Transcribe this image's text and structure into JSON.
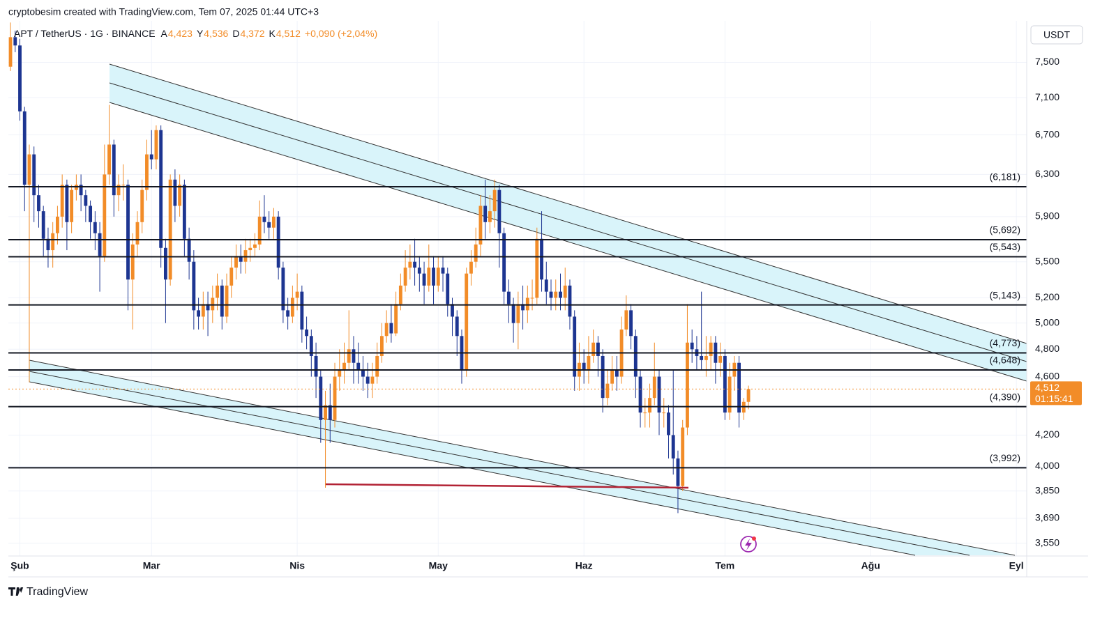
{
  "header": {
    "author_line": "cryptobesim created with TradingView.com, Tem 07, 2025 01:44 UTC+3"
  },
  "footer": {
    "brand": "TradingView"
  },
  "chart_data": {
    "type": "candlestick",
    "symbol": "APT / TetherUS · 1G · BINANCE",
    "ohlc_legend": [
      {
        "key": "A",
        "label": "4,423"
      },
      {
        "key": "Y",
        "label": "4,536"
      },
      {
        "key": "D",
        "label": "4,372"
      },
      {
        "key": "K",
        "label": "4,512"
      }
    ],
    "change": "+0,090 (+2,04%)",
    "currency": "USDT",
    "last_price": {
      "value": 4.512,
      "label": "4,512"
    },
    "countdown": "01:15:41",
    "up_color": "#f28c28",
    "down_color": "#1d3591",
    "log_scale": true,
    "grid": true,
    "xlim": [
      -0.45,
      216.2
    ],
    "xticks": [
      {
        "value": 2,
        "label": "Şub"
      },
      {
        "value": 30,
        "label": "Mar"
      },
      {
        "value": 61,
        "label": "Nis"
      },
      {
        "value": 91,
        "label": "May"
      },
      {
        "value": 122,
        "label": "Haz"
      },
      {
        "value": 152,
        "label": "Tem"
      },
      {
        "value": 183,
        "label": "Ağu"
      },
      {
        "value": 214,
        "label": "Eyl"
      }
    ],
    "ylim": [
      3.48,
      8.0
    ],
    "yticks": [
      {
        "value": 3.55,
        "label": "3,550"
      },
      {
        "value": 3.69,
        "label": "3,690"
      },
      {
        "value": 3.85,
        "label": "3,850"
      },
      {
        "value": 4.0,
        "label": "4,000"
      },
      {
        "value": 4.2,
        "label": "4,200"
      },
      {
        "value": 4.6,
        "label": "4,600"
      },
      {
        "value": 4.8,
        "label": "4,800"
      },
      {
        "value": 5.0,
        "label": "5,000"
      },
      {
        "value": 5.2,
        "label": "5,200"
      },
      {
        "value": 5.5,
        "label": "5,500"
      },
      {
        "value": 5.9,
        "label": "5,900"
      },
      {
        "value": 6.3,
        "label": "6,300"
      },
      {
        "value": 6.7,
        "label": "6,700"
      },
      {
        "value": 7.1,
        "label": "7,100"
      },
      {
        "value": 7.5,
        "label": "7,500"
      }
    ],
    "levels": [
      {
        "value": 6.181,
        "label": "(6,181)"
      },
      {
        "value": 5.692,
        "label": "(5,692)"
      },
      {
        "value": 5.543,
        "label": "(5,543)"
      },
      {
        "value": 5.143,
        "label": "(5,143)"
      },
      {
        "value": 4.773,
        "label": "(4,773)"
      },
      {
        "value": 4.648,
        "label": "(4,648)"
      },
      {
        "value": 4.39,
        "label": "(4,390)"
      },
      {
        "value": 3.992,
        "label": "(3,992)"
      }
    ],
    "open": [
      7.45,
      7.8,
      7.7,
      6.95,
      6.2,
      6.5,
      6.1,
      5.95,
      5.7,
      5.6,
      5.75,
      5.9,
      6.2,
      5.85,
      6.15,
      6.2,
      6.1,
      6.0,
      5.85,
      5.75,
      5.55,
      6.3,
      6.6,
      6.1,
      6.2,
      6.2,
      5.35,
      5.65,
      5.85,
      6.15,
      6.5,
      6.45,
      6.75,
      5.62,
      5.35,
      6.25,
      6.0,
      6.2,
      5.7,
      5.5,
      5.1,
      5.05,
      5.15,
      5.1,
      5.2,
      5.3,
      5.05,
      5.3,
      5.45,
      5.55,
      5.5,
      5.6,
      5.62,
      5.65,
      5.9,
      5.85,
      5.8,
      5.9,
      5.45,
      5.1,
      5.05,
      5.2,
      5.25,
      4.95,
      4.9,
      4.75,
      4.6,
      4.3,
      4.4,
      4.3,
      4.6,
      4.65,
      4.7,
      4.8,
      4.7,
      4.65,
      4.6,
      4.55,
      4.6,
      4.75,
      4.9,
      5.0,
      4.92,
      5.15,
      5.3,
      5.45,
      5.5,
      5.45,
      5.4,
      5.3,
      5.45,
      5.3,
      5.45,
      5.4,
      5.15,
      5.05,
      4.9,
      4.65,
      5.4,
      5.5,
      5.65,
      6.0,
      5.85,
      5.95,
      6.15,
      5.75,
      5.25,
      5.15,
      5.0,
      5.15,
      5.1,
      5.2,
      5.2,
      5.7,
      5.35,
      5.25,
      5.2,
      5.25,
      5.2,
      5.3,
      5.05,
      4.6,
      4.7,
      4.65,
      4.75,
      4.85,
      4.75,
      4.45,
      4.55,
      4.65,
      4.6,
      4.95,
      5.1,
      4.9,
      4.6,
      4.35,
      4.35,
      4.45,
      4.6,
      4.35,
      4.35,
      4.2,
      4.05,
      3.88,
      4.25,
      4.85,
      4.8,
      4.75,
      4.72,
      4.75,
      4.85,
      4.7,
      4.75,
      4.35,
      4.6,
      4.7,
      4.35,
      4.423
    ],
    "high": [
      7.98,
      7.88,
      7.78,
      7.0,
      6.6,
      6.58,
      6.2,
      6.0,
      5.8,
      5.85,
      6.0,
      6.3,
      6.25,
      6.2,
      6.3,
      6.3,
      6.15,
      6.05,
      5.95,
      5.85,
      6.6,
      7.02,
      6.65,
      6.3,
      6.4,
      6.25,
      5.75,
      5.95,
      6.25,
      6.65,
      6.75,
      6.8,
      6.8,
      5.7,
      6.3,
      6.35,
      6.3,
      6.25,
      5.8,
      5.6,
      5.2,
      5.25,
      5.25,
      5.3,
      5.4,
      5.35,
      5.4,
      5.55,
      5.65,
      5.65,
      5.7,
      5.7,
      5.75,
      6.05,
      6.1,
      5.95,
      5.98,
      5.95,
      5.5,
      5.2,
      5.3,
      5.4,
      5.3,
      5.05,
      4.95,
      4.85,
      4.65,
      4.5,
      4.55,
      4.7,
      4.8,
      4.85,
      5.1,
      4.9,
      4.85,
      4.75,
      4.7,
      4.7,
      4.85,
      5.0,
      5.1,
      5.15,
      5.25,
      5.4,
      5.6,
      5.65,
      5.7,
      5.55,
      5.5,
      5.65,
      5.55,
      5.55,
      5.55,
      5.45,
      5.2,
      5.1,
      4.95,
      5.45,
      5.6,
      5.8,
      6.1,
      6.25,
      6.1,
      6.25,
      6.2,
      5.8,
      5.35,
      5.2,
      5.25,
      5.3,
      5.3,
      5.35,
      5.8,
      5.95,
      5.5,
      5.35,
      5.35,
      5.4,
      5.45,
      5.35,
      5.1,
      4.85,
      4.8,
      4.9,
      4.95,
      4.9,
      4.8,
      4.65,
      4.75,
      4.75,
      5.05,
      5.22,
      5.15,
      4.95,
      4.65,
      4.45,
      4.55,
      4.85,
      4.65,
      4.45,
      4.4,
      4.65,
      4.1,
      4.3,
      5.15,
      4.95,
      4.9,
      5.25,
      4.9,
      4.9,
      4.9,
      4.85,
      4.8,
      4.7,
      4.75,
      4.75,
      4.45,
      4.536
    ],
    "low": [
      7.4,
      7.62,
      6.85,
      5.95,
      4.56,
      5.85,
      5.8,
      5.55,
      5.45,
      5.45,
      5.65,
      5.8,
      5.6,
      5.75,
      6.05,
      5.95,
      5.85,
      5.7,
      5.6,
      5.25,
      5.5,
      6.2,
      5.9,
      5.95,
      6.05,
      5.1,
      4.95,
      5.55,
      5.75,
      6.05,
      6.35,
      6.35,
      5.45,
      5.0,
      5.3,
      5.85,
      5.9,
      5.55,
      5.35,
      4.95,
      4.95,
      4.95,
      4.9,
      5.0,
      5.1,
      4.95,
      5.0,
      5.2,
      5.35,
      5.4,
      5.4,
      5.5,
      5.55,
      5.6,
      5.75,
      5.7,
      5.7,
      5.35,
      5.0,
      4.95,
      5.0,
      5.1,
      4.85,
      4.8,
      4.6,
      4.45,
      4.15,
      3.87,
      4.15,
      4.25,
      4.5,
      4.55,
      4.65,
      4.55,
      4.55,
      4.5,
      4.45,
      4.45,
      4.55,
      4.7,
      4.85,
      4.85,
      4.9,
      5.1,
      5.25,
      5.35,
      5.3,
      5.25,
      5.15,
      5.25,
      5.15,
      5.25,
      5.25,
      5.05,
      4.9,
      4.75,
      4.55,
      4.6,
      5.3,
      5.45,
      5.55,
      5.7,
      5.75,
      5.8,
      5.45,
      5.15,
      5.0,
      4.85,
      4.8,
      4.95,
      5.0,
      5.1,
      5.15,
      5.25,
      5.15,
      5.1,
      5.1,
      5.1,
      5.1,
      4.95,
      4.5,
      4.5,
      4.55,
      4.55,
      4.7,
      4.6,
      4.35,
      4.4,
      4.5,
      4.5,
      4.55,
      4.9,
      4.8,
      4.45,
      4.25,
      4.25,
      4.25,
      4.4,
      4.2,
      4.25,
      4.05,
      3.95,
      3.72,
      3.85,
      4.2,
      4.7,
      4.65,
      4.65,
      4.6,
      4.65,
      4.55,
      4.6,
      4.3,
      4.3,
      4.5,
      4.25,
      4.3,
      4.372
    ],
    "close": [
      7.8,
      7.7,
      6.95,
      6.2,
      6.5,
      6.1,
      5.95,
      5.7,
      5.6,
      5.75,
      5.9,
      6.2,
      5.85,
      6.15,
      6.2,
      6.1,
      6.0,
      5.85,
      5.75,
      5.55,
      6.3,
      6.6,
      6.1,
      6.2,
      6.2,
      5.35,
      5.65,
      5.85,
      6.15,
      6.5,
      6.45,
      6.75,
      5.62,
      5.35,
      6.25,
      6.0,
      6.2,
      5.7,
      5.5,
      5.1,
      5.05,
      5.15,
      5.1,
      5.2,
      5.3,
      5.05,
      5.3,
      5.45,
      5.55,
      5.5,
      5.6,
      5.62,
      5.65,
      5.9,
      5.85,
      5.8,
      5.9,
      5.45,
      5.1,
      5.05,
      5.2,
      5.25,
      4.95,
      4.9,
      4.75,
      4.6,
      4.3,
      4.4,
      4.3,
      4.6,
      4.65,
      4.7,
      4.8,
      4.7,
      4.65,
      4.6,
      4.55,
      4.6,
      4.75,
      4.9,
      5.0,
      4.92,
      5.15,
      5.3,
      5.45,
      5.5,
      5.45,
      5.4,
      5.3,
      5.45,
      5.3,
      5.45,
      5.4,
      5.15,
      5.05,
      4.9,
      4.65,
      5.4,
      5.5,
      5.65,
      6.0,
      5.85,
      5.95,
      6.15,
      5.75,
      5.25,
      5.15,
      5.0,
      5.15,
      5.1,
      5.2,
      5.2,
      5.7,
      5.35,
      5.25,
      5.2,
      5.25,
      5.2,
      5.3,
      5.05,
      4.6,
      4.7,
      4.65,
      4.75,
      4.85,
      4.75,
      4.45,
      4.55,
      4.65,
      4.6,
      4.95,
      5.1,
      4.9,
      4.6,
      4.35,
      4.35,
      4.45,
      4.6,
      4.35,
      4.35,
      4.2,
      4.05,
      3.88,
      4.25,
      4.85,
      4.8,
      4.75,
      4.72,
      4.75,
      4.85,
      4.7,
      4.75,
      4.35,
      4.6,
      4.7,
      4.35,
      4.423,
      4.512
    ]
  }
}
